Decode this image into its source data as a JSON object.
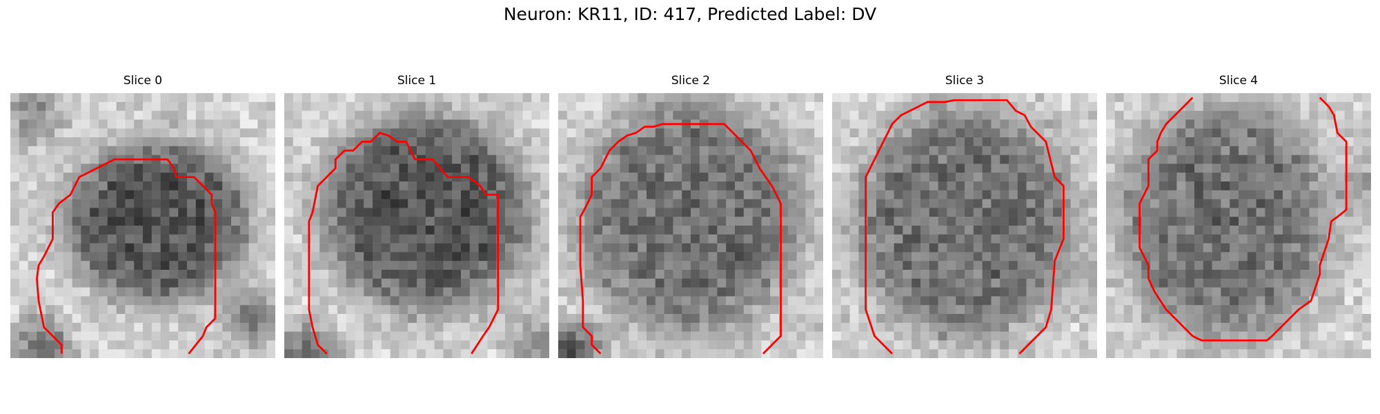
{
  "figure": {
    "title": "Neuron: KR11, ID: 417, Predicted Label: DV"
  },
  "panels": [
    {
      "title": "Slice 0"
    },
    {
      "title": "Slice 1"
    },
    {
      "title": "Slice 2"
    },
    {
      "title": "Slice 3"
    },
    {
      "title": "Slice 4"
    }
  ],
  "colors": {
    "contour": "#ff0000",
    "pixel_dark": "#111111",
    "pixel_light": "#f2f2f2"
  }
}
